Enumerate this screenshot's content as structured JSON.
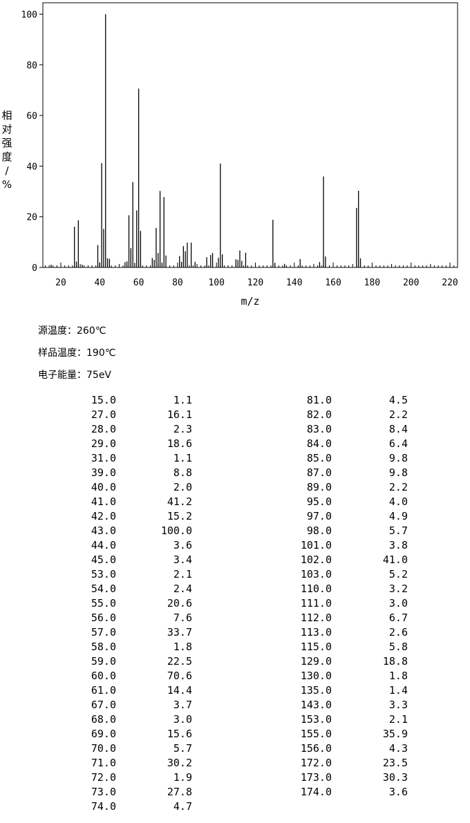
{
  "chart_data": {
    "type": "bar",
    "xlabel": "m/z",
    "ylabel": "相对强度/%",
    "xlim": [
      10,
      222
    ],
    "ylim": [
      0,
      104
    ],
    "xticks": [
      20,
      40,
      60,
      80,
      100,
      120,
      140,
      160,
      180,
      200,
      220
    ],
    "yticks": [
      0,
      20,
      40,
      60,
      80,
      100
    ],
    "grid": false,
    "peaks": [
      [
        15,
        1.1
      ],
      [
        27,
        16.1
      ],
      [
        28,
        2.3
      ],
      [
        29,
        18.6
      ],
      [
        31,
        1.1
      ],
      [
        39,
        8.8
      ],
      [
        40,
        2.0
      ],
      [
        41,
        41.2
      ],
      [
        42,
        15.2
      ],
      [
        43,
        100.0
      ],
      [
        44,
        3.6
      ],
      [
        45,
        3.4
      ],
      [
        53,
        2.1
      ],
      [
        54,
        2.4
      ],
      [
        55,
        20.6
      ],
      [
        56,
        7.6
      ],
      [
        57,
        33.7
      ],
      [
        58,
        1.8
      ],
      [
        59,
        22.5
      ],
      [
        60,
        70.6
      ],
      [
        61,
        14.4
      ],
      [
        67,
        3.7
      ],
      [
        68,
        3.0
      ],
      [
        69,
        15.6
      ],
      [
        70,
        5.7
      ],
      [
        71,
        30.2
      ],
      [
        72,
        1.9
      ],
      [
        73,
        27.8
      ],
      [
        74,
        4.7
      ],
      [
        81,
        4.5
      ],
      [
        82,
        2.2
      ],
      [
        83,
        8.4
      ],
      [
        84,
        6.4
      ],
      [
        85,
        9.8
      ],
      [
        87,
        9.8
      ],
      [
        89,
        2.2
      ],
      [
        95,
        4.0
      ],
      [
        97,
        4.9
      ],
      [
        98,
        5.7
      ],
      [
        101,
        3.8
      ],
      [
        102,
        41.0
      ],
      [
        103,
        5.2
      ],
      [
        110,
        3.2
      ],
      [
        111,
        3.0
      ],
      [
        112,
        6.7
      ],
      [
        113,
        2.6
      ],
      [
        115,
        5.8
      ],
      [
        129,
        18.8
      ],
      [
        130,
        1.8
      ],
      [
        135,
        1.4
      ],
      [
        143,
        3.3
      ],
      [
        153,
        2.1
      ],
      [
        155,
        35.9
      ],
      [
        156,
        4.3
      ],
      [
        172,
        23.5
      ],
      [
        173,
        30.3
      ],
      [
        174,
        3.6
      ]
    ]
  },
  "conditions": {
    "source_temp": "源温度：260℃",
    "sample_temp": "样品温度：190℃",
    "electron_energy": "电子能量：75eV"
  },
  "table": {
    "left": [
      [
        "15.0",
        "1.1"
      ],
      [
        "27.0",
        "16.1"
      ],
      [
        "28.0",
        "2.3"
      ],
      [
        "29.0",
        "18.6"
      ],
      [
        "31.0",
        "1.1"
      ],
      [
        "39.0",
        "8.8"
      ],
      [
        "40.0",
        "2.0"
      ],
      [
        "41.0",
        "41.2"
      ],
      [
        "42.0",
        "15.2"
      ],
      [
        "43.0",
        "100.0"
      ],
      [
        "44.0",
        "3.6"
      ],
      [
        "45.0",
        "3.4"
      ],
      [
        "53.0",
        "2.1"
      ],
      [
        "54.0",
        "2.4"
      ],
      [
        "55.0",
        "20.6"
      ],
      [
        "56.0",
        "7.6"
      ],
      [
        "57.0",
        "33.7"
      ],
      [
        "58.0",
        "1.8"
      ],
      [
        "59.0",
        "22.5"
      ],
      [
        "60.0",
        "70.6"
      ],
      [
        "61.0",
        "14.4"
      ],
      [
        "67.0",
        "3.7"
      ],
      [
        "68.0",
        "3.0"
      ],
      [
        "69.0",
        "15.6"
      ],
      [
        "70.0",
        "5.7"
      ],
      [
        "71.0",
        "30.2"
      ],
      [
        "72.0",
        "1.9"
      ],
      [
        "73.0",
        "27.8"
      ],
      [
        "74.0",
        "4.7"
      ]
    ],
    "right": [
      [
        "81.0",
        "4.5"
      ],
      [
        "82.0",
        "2.2"
      ],
      [
        "83.0",
        "8.4"
      ],
      [
        "84.0",
        "6.4"
      ],
      [
        "85.0",
        "9.8"
      ],
      [
        "87.0",
        "9.8"
      ],
      [
        "89.0",
        "2.2"
      ],
      [
        "95.0",
        "4.0"
      ],
      [
        "97.0",
        "4.9"
      ],
      [
        "98.0",
        "5.7"
      ],
      [
        "101.0",
        "3.8"
      ],
      [
        "102.0",
        "41.0"
      ],
      [
        "103.0",
        "5.2"
      ],
      [
        "110.0",
        "3.2"
      ],
      [
        "111.0",
        "3.0"
      ],
      [
        "112.0",
        "6.7"
      ],
      [
        "113.0",
        "2.6"
      ],
      [
        "115.0",
        "5.8"
      ],
      [
        "129.0",
        "18.8"
      ],
      [
        "130.0",
        "1.8"
      ],
      [
        "135.0",
        "1.4"
      ],
      [
        "143.0",
        "3.3"
      ],
      [
        "153.0",
        "2.1"
      ],
      [
        "155.0",
        "35.9"
      ],
      [
        "156.0",
        "4.3"
      ],
      [
        "172.0",
        "23.5"
      ],
      [
        "173.0",
        "30.3"
      ],
      [
        "174.0",
        "3.6"
      ]
    ]
  }
}
